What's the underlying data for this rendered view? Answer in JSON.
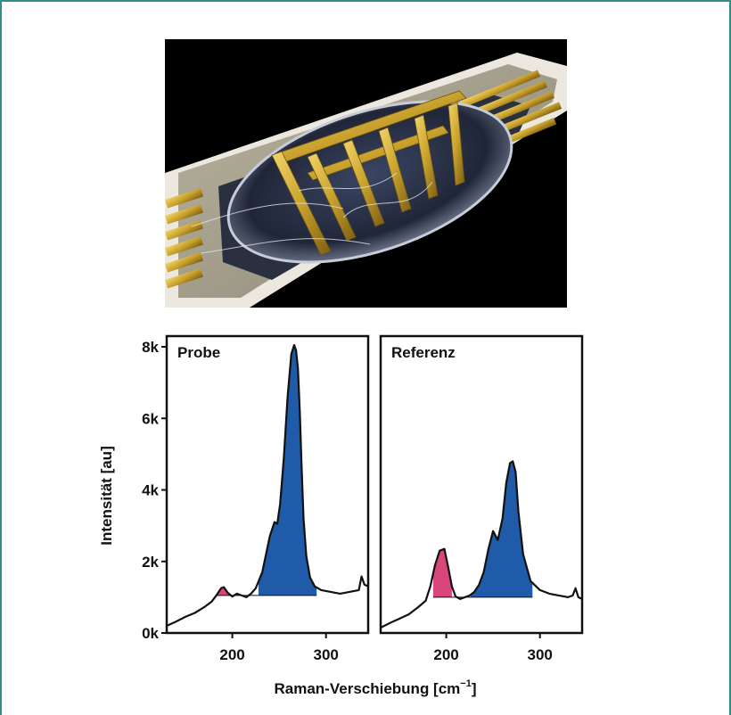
{
  "colors": {
    "frame": "#2f8f8a",
    "peak_blue": "#1f5ba8",
    "peak_pink": "#d9467c",
    "gold": "#c9a22d",
    "background": "#ffffff"
  },
  "image": {
    "subject": "gold electrodes on a chip with a dark droplet",
    "icon": "microchip-photo"
  },
  "chart_data": {
    "type": "line",
    "ylabel": "Intensität [au]",
    "xlabel": "Raman-Verschiebung [cm",
    "xlabel_superscript": "−1",
    "xlabel_end": "]",
    "ylim": [
      0,
      8300
    ],
    "xlim": [
      130,
      345
    ],
    "yticks": [
      0,
      2000,
      4000,
      6000,
      8000
    ],
    "ytick_labels": [
      "0k",
      "2k",
      "4k",
      "6k",
      "8k"
    ],
    "xticks": [
      200,
      300
    ],
    "xtick_labels": [
      "200",
      "300"
    ],
    "grid": false,
    "panels": [
      {
        "title": "Probe",
        "baseline": 1050,
        "series": [
          {
            "x": [
              130,
              140,
              150,
              160,
              170,
              178,
              183,
              188,
              191,
              195,
              200,
              205,
              210,
              215,
              220,
              225,
              232,
              240,
              245,
              248,
              251,
              255,
              259,
              263,
              266,
              268,
              270,
              272,
              274,
              276,
              279,
              283,
              288,
              295,
              305,
              315,
              325,
              335,
              338,
              341,
              345
            ],
            "y": [
              200,
              320,
              450,
              560,
              720,
              880,
              1050,
              1250,
              1280,
              1130,
              1020,
              1100,
              1050,
              1000,
              1100,
              1250,
              1700,
              2700,
              3100,
              3050,
              3600,
              4900,
              6600,
              7800,
              8050,
              7900,
              7400,
              6200,
              4600,
              3200,
              2150,
              1550,
              1300,
              1200,
              1150,
              1100,
              1150,
              1200,
              1580,
              1350,
              1300
            ],
            "highlight": [
              {
                "range": [
                  183,
                  199
                ],
                "color": "pink"
              },
              {
                "range": [
                  228,
                  290
                ],
                "color": "blue"
              }
            ]
          }
        ]
      },
      {
        "title": "Referenz",
        "baseline": 1000,
        "series": [
          {
            "x": [
              130,
              140,
              150,
              160,
              170,
              178,
              183,
              188,
              193,
              198,
              202,
              206,
              210,
              215,
              220,
              225,
              230,
              235,
              240,
              245,
              250,
              255,
              260,
              264,
              268,
              271,
              274,
              277,
              282,
              290,
              300,
              310,
              320,
              330,
              335,
              338,
              341,
              345
            ],
            "y": [
              150,
              280,
              400,
              520,
              720,
              900,
              1300,
              1900,
              2300,
              2350,
              1850,
              1300,
              1020,
              950,
              1000,
              1050,
              1150,
              1350,
              1700,
              2350,
              2850,
              2600,
              3200,
              4200,
              4750,
              4800,
              4500,
              3400,
              2200,
              1450,
              1200,
              1100,
              1050,
              1000,
              1050,
              1250,
              1000,
              950
            ],
            "highlight": [
              {
                "range": [
                  186,
                  206
                ],
                "color": "pink"
              },
              {
                "range": [
                  226,
                  292
                ],
                "color": "blue"
              }
            ]
          }
        ]
      }
    ]
  }
}
